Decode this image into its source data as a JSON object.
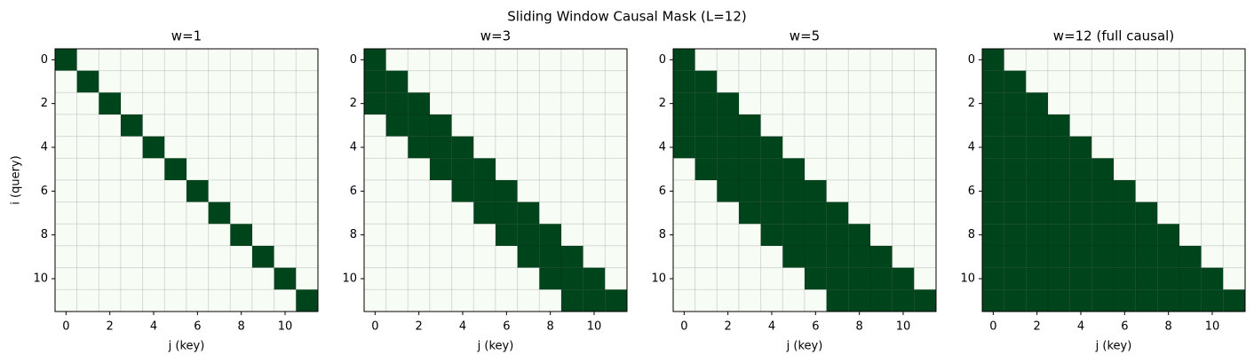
{
  "title": "Sliding Window Causal Mask  (L=12)",
  "chart_data": [
    {
      "type": "heatmap",
      "title": "w=1",
      "xlabel": "j (key)",
      "ylabel": "i (query)",
      "colors": [
        "#f7fcf5",
        "#00441b"
      ],
      "grid": true,
      "xlim": [
        -0.5,
        11.5
      ],
      "ylim": [
        11.5,
        -0.5
      ],
      "xticks": [
        0,
        2,
        4,
        6,
        8,
        10
      ],
      "yticks": [
        0,
        2,
        4,
        6,
        8,
        10
      ],
      "values": [
        [
          1,
          0,
          0,
          0,
          0,
          0,
          0,
          0,
          0,
          0,
          0,
          0
        ],
        [
          0,
          1,
          0,
          0,
          0,
          0,
          0,
          0,
          0,
          0,
          0,
          0
        ],
        [
          0,
          0,
          1,
          0,
          0,
          0,
          0,
          0,
          0,
          0,
          0,
          0
        ],
        [
          0,
          0,
          0,
          1,
          0,
          0,
          0,
          0,
          0,
          0,
          0,
          0
        ],
        [
          0,
          0,
          0,
          0,
          1,
          0,
          0,
          0,
          0,
          0,
          0,
          0
        ],
        [
          0,
          0,
          0,
          0,
          0,
          1,
          0,
          0,
          0,
          0,
          0,
          0
        ],
        [
          0,
          0,
          0,
          0,
          0,
          0,
          1,
          0,
          0,
          0,
          0,
          0
        ],
        [
          0,
          0,
          0,
          0,
          0,
          0,
          0,
          1,
          0,
          0,
          0,
          0
        ],
        [
          0,
          0,
          0,
          0,
          0,
          0,
          0,
          0,
          1,
          0,
          0,
          0
        ],
        [
          0,
          0,
          0,
          0,
          0,
          0,
          0,
          0,
          0,
          1,
          0,
          0
        ],
        [
          0,
          0,
          0,
          0,
          0,
          0,
          0,
          0,
          0,
          0,
          1,
          0
        ],
        [
          0,
          0,
          0,
          0,
          0,
          0,
          0,
          0,
          0,
          0,
          0,
          1
        ]
      ]
    },
    {
      "type": "heatmap",
      "title": "w=3",
      "xlabel": "j (key)",
      "colors": [
        "#f7fcf5",
        "#00441b"
      ],
      "grid": true,
      "xlim": [
        -0.5,
        11.5
      ],
      "ylim": [
        11.5,
        -0.5
      ],
      "xticks": [
        0,
        2,
        4,
        6,
        8,
        10
      ],
      "yticks": [
        0,
        2,
        4,
        6,
        8,
        10
      ],
      "values": [
        [
          1,
          0,
          0,
          0,
          0,
          0,
          0,
          0,
          0,
          0,
          0,
          0
        ],
        [
          1,
          1,
          0,
          0,
          0,
          0,
          0,
          0,
          0,
          0,
          0,
          0
        ],
        [
          1,
          1,
          1,
          0,
          0,
          0,
          0,
          0,
          0,
          0,
          0,
          0
        ],
        [
          0,
          1,
          1,
          1,
          0,
          0,
          0,
          0,
          0,
          0,
          0,
          0
        ],
        [
          0,
          0,
          1,
          1,
          1,
          0,
          0,
          0,
          0,
          0,
          0,
          0
        ],
        [
          0,
          0,
          0,
          1,
          1,
          1,
          0,
          0,
          0,
          0,
          0,
          0
        ],
        [
          0,
          0,
          0,
          0,
          1,
          1,
          1,
          0,
          0,
          0,
          0,
          0
        ],
        [
          0,
          0,
          0,
          0,
          0,
          1,
          1,
          1,
          0,
          0,
          0,
          0
        ],
        [
          0,
          0,
          0,
          0,
          0,
          0,
          1,
          1,
          1,
          0,
          0,
          0
        ],
        [
          0,
          0,
          0,
          0,
          0,
          0,
          0,
          1,
          1,
          1,
          0,
          0
        ],
        [
          0,
          0,
          0,
          0,
          0,
          0,
          0,
          0,
          1,
          1,
          1,
          0
        ],
        [
          0,
          0,
          0,
          0,
          0,
          0,
          0,
          0,
          0,
          1,
          1,
          1
        ]
      ]
    },
    {
      "type": "heatmap",
      "title": "w=5",
      "xlabel": "j (key)",
      "colors": [
        "#f7fcf5",
        "#00441b"
      ],
      "grid": true,
      "xlim": [
        -0.5,
        11.5
      ],
      "ylim": [
        11.5,
        -0.5
      ],
      "xticks": [
        0,
        2,
        4,
        6,
        8,
        10
      ],
      "yticks": [
        0,
        2,
        4,
        6,
        8,
        10
      ],
      "values": [
        [
          1,
          0,
          0,
          0,
          0,
          0,
          0,
          0,
          0,
          0,
          0,
          0
        ],
        [
          1,
          1,
          0,
          0,
          0,
          0,
          0,
          0,
          0,
          0,
          0,
          0
        ],
        [
          1,
          1,
          1,
          0,
          0,
          0,
          0,
          0,
          0,
          0,
          0,
          0
        ],
        [
          1,
          1,
          1,
          1,
          0,
          0,
          0,
          0,
          0,
          0,
          0,
          0
        ],
        [
          1,
          1,
          1,
          1,
          1,
          0,
          0,
          0,
          0,
          0,
          0,
          0
        ],
        [
          0,
          1,
          1,
          1,
          1,
          1,
          0,
          0,
          0,
          0,
          0,
          0
        ],
        [
          0,
          0,
          1,
          1,
          1,
          1,
          1,
          0,
          0,
          0,
          0,
          0
        ],
        [
          0,
          0,
          0,
          1,
          1,
          1,
          1,
          1,
          0,
          0,
          0,
          0
        ],
        [
          0,
          0,
          0,
          0,
          1,
          1,
          1,
          1,
          1,
          0,
          0,
          0
        ],
        [
          0,
          0,
          0,
          0,
          0,
          1,
          1,
          1,
          1,
          1,
          0,
          0
        ],
        [
          0,
          0,
          0,
          0,
          0,
          0,
          1,
          1,
          1,
          1,
          1,
          0
        ],
        [
          0,
          0,
          0,
          0,
          0,
          0,
          0,
          1,
          1,
          1,
          1,
          1
        ]
      ]
    },
    {
      "type": "heatmap",
      "title": "w=12 (full causal)",
      "xlabel": "j (key)",
      "colors": [
        "#f7fcf5",
        "#00441b"
      ],
      "grid": true,
      "xlim": [
        -0.5,
        11.5
      ],
      "ylim": [
        11.5,
        -0.5
      ],
      "xticks": [
        0,
        2,
        4,
        6,
        8,
        10
      ],
      "yticks": [
        0,
        2,
        4,
        6,
        8,
        10
      ],
      "values": [
        [
          1,
          0,
          0,
          0,
          0,
          0,
          0,
          0,
          0,
          0,
          0,
          0
        ],
        [
          1,
          1,
          0,
          0,
          0,
          0,
          0,
          0,
          0,
          0,
          0,
          0
        ],
        [
          1,
          1,
          1,
          0,
          0,
          0,
          0,
          0,
          0,
          0,
          0,
          0
        ],
        [
          1,
          1,
          1,
          1,
          0,
          0,
          0,
          0,
          0,
          0,
          0,
          0
        ],
        [
          1,
          1,
          1,
          1,
          1,
          0,
          0,
          0,
          0,
          0,
          0,
          0
        ],
        [
          1,
          1,
          1,
          1,
          1,
          1,
          0,
          0,
          0,
          0,
          0,
          0
        ],
        [
          1,
          1,
          1,
          1,
          1,
          1,
          1,
          0,
          0,
          0,
          0,
          0
        ],
        [
          1,
          1,
          1,
          1,
          1,
          1,
          1,
          1,
          0,
          0,
          0,
          0
        ],
        [
          1,
          1,
          1,
          1,
          1,
          1,
          1,
          1,
          1,
          0,
          0,
          0
        ],
        [
          1,
          1,
          1,
          1,
          1,
          1,
          1,
          1,
          1,
          1,
          0,
          0
        ],
        [
          1,
          1,
          1,
          1,
          1,
          1,
          1,
          1,
          1,
          1,
          1,
          0
        ],
        [
          1,
          1,
          1,
          1,
          1,
          1,
          1,
          1,
          1,
          1,
          1,
          1
        ]
      ]
    }
  ]
}
